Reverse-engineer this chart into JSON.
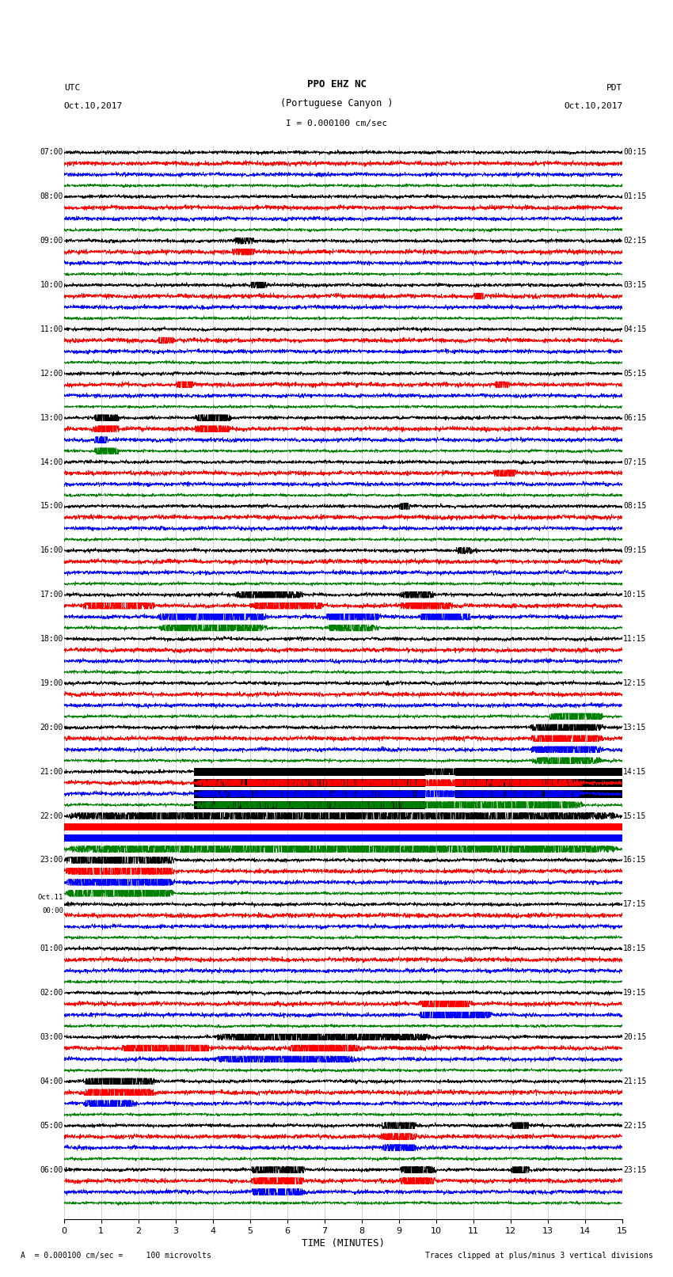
{
  "title_line1": "PPO EHZ NC",
  "title_line2": "(Portuguese Canyon )",
  "title_line3": "I = 0.000100 cm/sec",
  "left_label_top": "UTC",
  "left_label_date": "Oct.10,2017",
  "right_label_top": "PDT",
  "right_label_date": "Oct.10,2017",
  "bottom_note": "A  = 0.000100 cm/sec =     100 microvolts",
  "bottom_note_right": "Traces clipped at plus/minus 3 vertical divisions",
  "xlabel": "TIME (MINUTES)",
  "xlim": [
    0,
    15
  ],
  "xticks": [
    0,
    1,
    2,
    3,
    4,
    5,
    6,
    7,
    8,
    9,
    10,
    11,
    12,
    13,
    14,
    15
  ],
  "trace_colors_cycle": [
    "black",
    "red",
    "blue",
    "green"
  ],
  "bg_color": "white",
  "num_rows": 96,
  "utc_labels": [
    {
      "row": 0,
      "label": "07:00"
    },
    {
      "row": 4,
      "label": "08:00"
    },
    {
      "row": 8,
      "label": "09:00"
    },
    {
      "row": 12,
      "label": "10:00"
    },
    {
      "row": 16,
      "label": "11:00"
    },
    {
      "row": 20,
      "label": "12:00"
    },
    {
      "row": 24,
      "label": "13:00"
    },
    {
      "row": 28,
      "label": "14:00"
    },
    {
      "row": 32,
      "label": "15:00"
    },
    {
      "row": 36,
      "label": "16:00"
    },
    {
      "row": 40,
      "label": "17:00"
    },
    {
      "row": 44,
      "label": "18:00"
    },
    {
      "row": 48,
      "label": "19:00"
    },
    {
      "row": 52,
      "label": "20:00"
    },
    {
      "row": 56,
      "label": "21:00"
    },
    {
      "row": 60,
      "label": "22:00"
    },
    {
      "row": 64,
      "label": "23:00"
    },
    {
      "row": 68,
      "label": "Oct.11\n00:00"
    },
    {
      "row": 72,
      "label": "01:00"
    },
    {
      "row": 76,
      "label": "02:00"
    },
    {
      "row": 80,
      "label": "03:00"
    },
    {
      "row": 84,
      "label": "04:00"
    },
    {
      "row": 88,
      "label": "05:00"
    },
    {
      "row": 92,
      "label": "06:00"
    }
  ],
  "pdt_labels": [
    {
      "row": 0,
      "label": "00:15"
    },
    {
      "row": 4,
      "label": "01:15"
    },
    {
      "row": 8,
      "label": "02:15"
    },
    {
      "row": 12,
      "label": "03:15"
    },
    {
      "row": 16,
      "label": "04:15"
    },
    {
      "row": 20,
      "label": "05:15"
    },
    {
      "row": 24,
      "label": "06:15"
    },
    {
      "row": 28,
      "label": "07:15"
    },
    {
      "row": 32,
      "label": "08:15"
    },
    {
      "row": 36,
      "label": "09:15"
    },
    {
      "row": 40,
      "label": "10:15"
    },
    {
      "row": 44,
      "label": "11:15"
    },
    {
      "row": 48,
      "label": "12:15"
    },
    {
      "row": 52,
      "label": "13:15"
    },
    {
      "row": 56,
      "label": "14:15"
    },
    {
      "row": 60,
      "label": "15:15"
    },
    {
      "row": 64,
      "label": "16:15"
    },
    {
      "row": 68,
      "label": "17:15"
    },
    {
      "row": 72,
      "label": "18:15"
    },
    {
      "row": 76,
      "label": "19:15"
    },
    {
      "row": 80,
      "label": "20:15"
    },
    {
      "row": 84,
      "label": "21:15"
    },
    {
      "row": 88,
      "label": "22:15"
    },
    {
      "row": 92,
      "label": "23:15"
    }
  ]
}
